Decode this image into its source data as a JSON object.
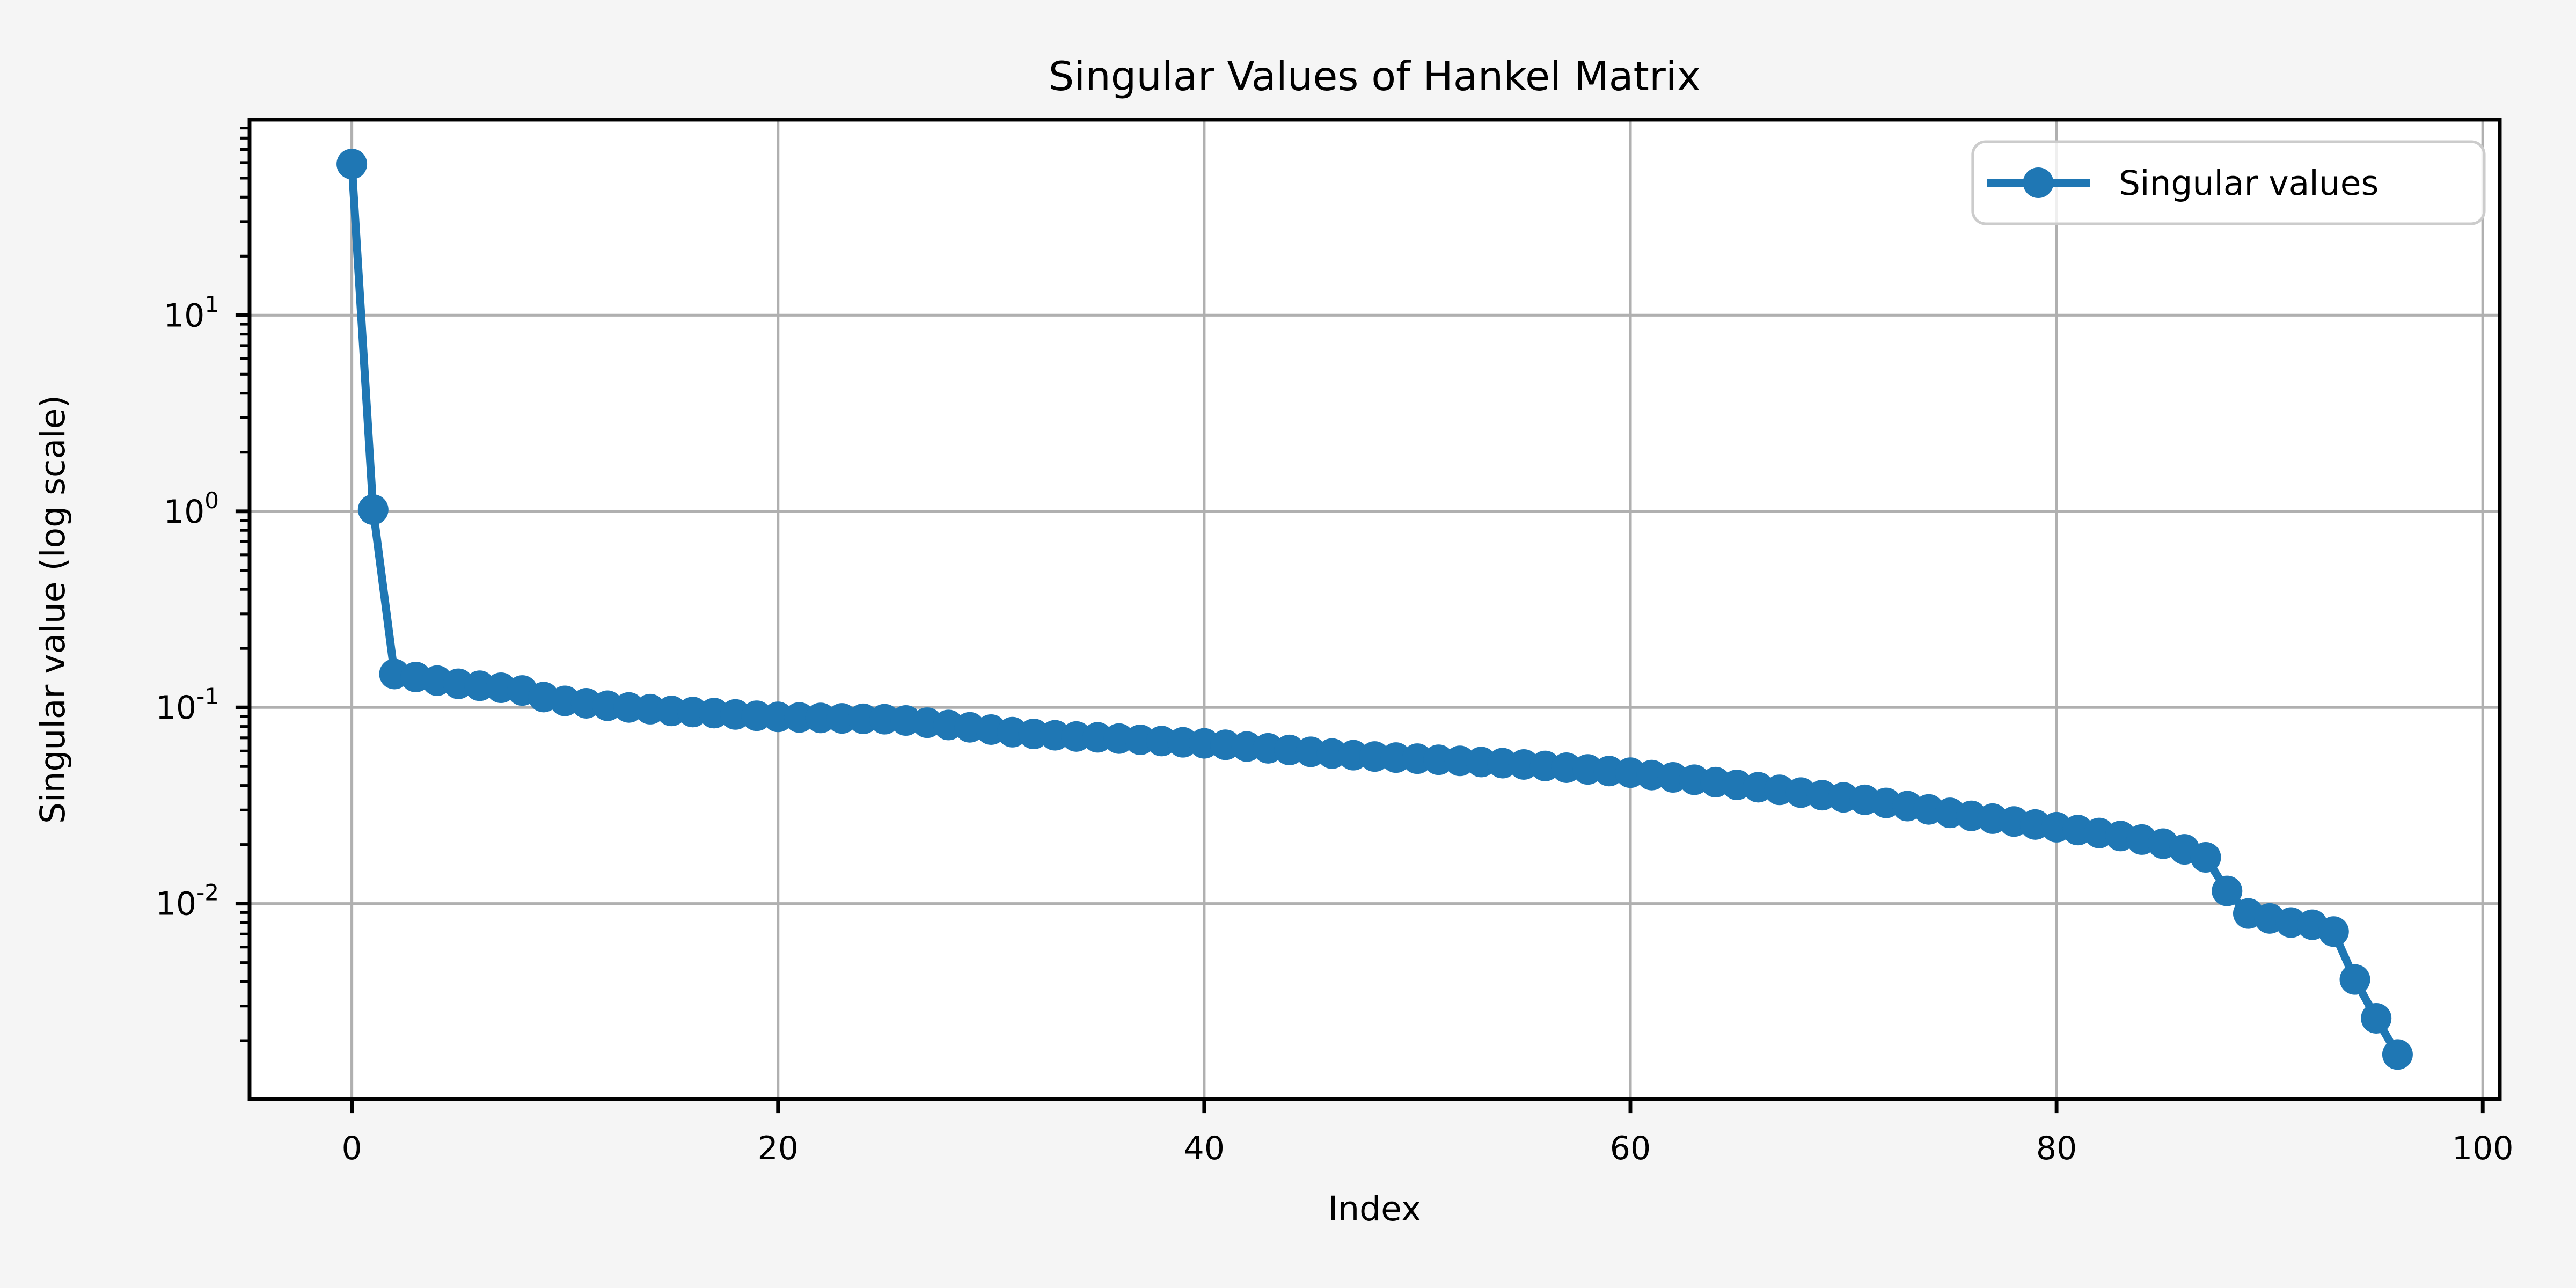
{
  "figure": {
    "background_color": "#f5f5f5",
    "axes_background_color": "#ffffff"
  },
  "chart_data": {
    "type": "line",
    "title": "Singular Values of Hankel Matrix",
    "xlabel": "Index",
    "ylabel": "Singular value (log scale)",
    "y_scale": "log",
    "grid": true,
    "legend_position": "upper right",
    "line_color": "#1f77b4",
    "grid_color": "#b0b0b0",
    "spine_color": "#000000",
    "legend_edge_color": "#cccccc",
    "x_ticks": [
      0,
      20,
      40,
      60,
      80,
      100
    ],
    "y_tick_exponents": [
      1,
      0,
      -1,
      -2
    ],
    "xlim": [
      -4.8,
      100.8
    ],
    "ylim_log10": [
      -2.997,
      1.997
    ],
    "x": [
      0,
      1,
      2,
      3,
      4,
      5,
      6,
      7,
      8,
      9,
      10,
      11,
      12,
      13,
      14,
      15,
      16,
      17,
      18,
      19,
      20,
      21,
      22,
      23,
      24,
      25,
      26,
      27,
      28,
      29,
      30,
      31,
      32,
      33,
      34,
      35,
      36,
      37,
      38,
      39,
      40,
      41,
      42,
      43,
      44,
      45,
      46,
      47,
      48,
      49,
      50,
      51,
      52,
      53,
      54,
      55,
      56,
      57,
      58,
      59,
      60,
      61,
      62,
      63,
      64,
      65,
      66,
      67,
      68,
      69,
      70,
      71,
      72,
      73,
      74,
      75,
      76,
      77,
      78,
      79,
      80,
      81,
      82,
      83,
      84,
      85,
      86,
      87,
      88,
      89,
      90,
      91,
      92,
      93,
      94,
      95,
      96
    ],
    "series": [
      {
        "name": "Singular values",
        "values": [
          59.0,
          1.02,
          0.148,
          0.143,
          0.137,
          0.132,
          0.129,
          0.126,
          0.122,
          0.113,
          0.108,
          0.105,
          0.102,
          0.1,
          0.098,
          0.096,
          0.0948,
          0.0936,
          0.0921,
          0.0907,
          0.0895,
          0.0889,
          0.0884,
          0.0879,
          0.0875,
          0.0871,
          0.0858,
          0.0836,
          0.0814,
          0.0792,
          0.0771,
          0.0748,
          0.0733,
          0.0721,
          0.0711,
          0.0704,
          0.0694,
          0.0684,
          0.0674,
          0.0664,
          0.0656,
          0.0645,
          0.0632,
          0.0619,
          0.0607,
          0.0594,
          0.0582,
          0.0571,
          0.0562,
          0.0555,
          0.0548,
          0.0541,
          0.0534,
          0.0527,
          0.052,
          0.0512,
          0.0503,
          0.0493,
          0.0483,
          0.0474,
          0.0465,
          0.0452,
          0.044,
          0.0428,
          0.0416,
          0.0403,
          0.0392,
          0.038,
          0.0368,
          0.0357,
          0.0348,
          0.0338,
          0.0326,
          0.0314,
          0.0302,
          0.029,
          0.028,
          0.0271,
          0.0262,
          0.0253,
          0.0245,
          0.0237,
          0.0229,
          0.0221,
          0.0212,
          0.0202,
          0.0189,
          0.0172,
          0.0116,
          0.0089,
          0.0084,
          0.008,
          0.0078,
          0.0072,
          0.0041,
          0.0026,
          0.0017
        ]
      }
    ]
  }
}
